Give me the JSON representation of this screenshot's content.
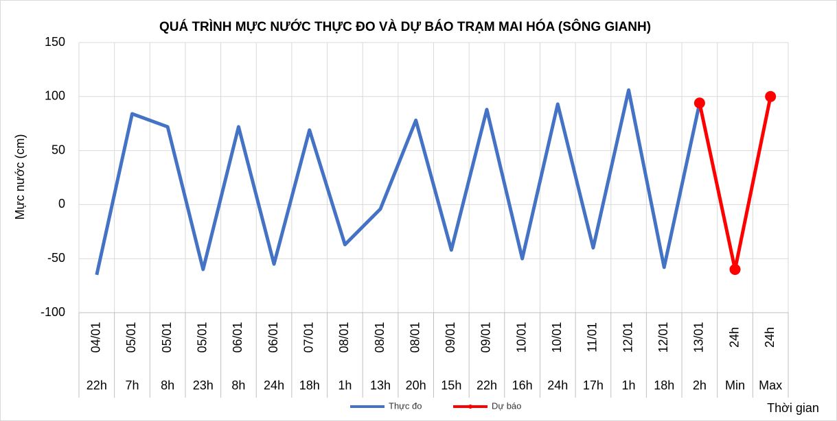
{
  "chart_data": {
    "type": "line",
    "title": "QUÁ TRÌNH MỰC NƯỚC THỰC ĐO VÀ DỰ BÁO TRẠM MAI HÓA (SÔNG GIANH)",
    "y_label": "Mực nước (cm)",
    "x_label": "Thời gian",
    "dates": [
      "04/01",
      "05/01",
      "05/01",
      "05/01",
      "06/01",
      "06/01",
      "07/01",
      "08/01",
      "08/01",
      "08/01",
      "09/01",
      "09/01",
      "10/01",
      "10/01",
      "11/01",
      "12/01",
      "12/01",
      "13/01",
      "24h",
      "24h"
    ],
    "categories": [
      "22h",
      "7h",
      "8h",
      "23h",
      "8h",
      "24h",
      "18h",
      "1h",
      "13h",
      "20h",
      "15h",
      "22h",
      "16h",
      "24h",
      "17h",
      "1h",
      "18h",
      "2h",
      "Min",
      "Max"
    ],
    "series": [
      {
        "name": "Thực đo",
        "color": "#4472c4",
        "values": [
          -65,
          84,
          72,
          -60,
          72,
          -55,
          69,
          -37,
          -4,
          78,
          -42,
          88,
          -50,
          93,
          -40,
          106,
          -58,
          94,
          null,
          null
        ]
      },
      {
        "name": "Dự báo",
        "color": "#ff0000",
        "values": [
          null,
          null,
          null,
          null,
          null,
          null,
          null,
          null,
          null,
          null,
          null,
          null,
          null,
          null,
          null,
          null,
          null,
          94,
          -60,
          100
        ]
      }
    ],
    "ylim": [
      -100,
      150
    ],
    "yticks": [
      -100,
      -50,
      0,
      50,
      100,
      150
    ],
    "grid": true
  }
}
